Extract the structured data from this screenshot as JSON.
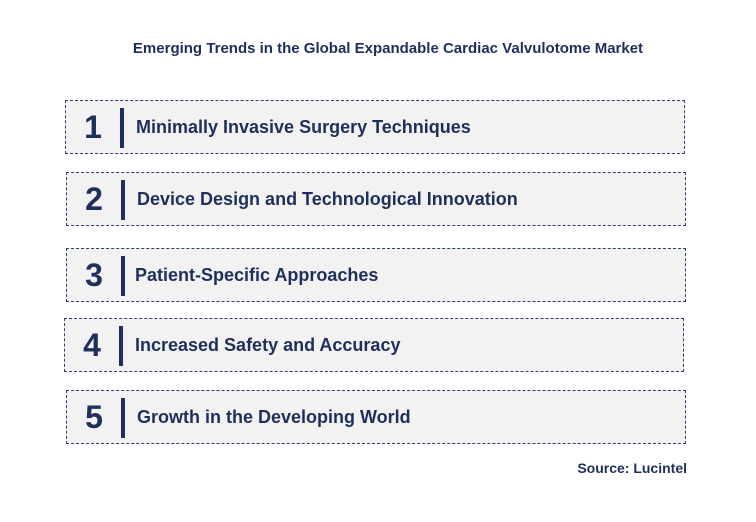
{
  "title": "Emerging Trends in the Global Expandable Cardiac Valvulotome Market",
  "trends": [
    {
      "number": "1",
      "label": "Minimally Invasive Surgery Techniques"
    },
    {
      "number": "2",
      "label": "Device Design and Technological Innovation"
    },
    {
      "number": "3",
      "label": "Patient-Specific Approaches"
    },
    {
      "number": "4",
      "label": "Increased Safety and Accuracy"
    },
    {
      "number": "5",
      "label": "Growth in the Developing World"
    }
  ],
  "source": "Source: Lucintel"
}
